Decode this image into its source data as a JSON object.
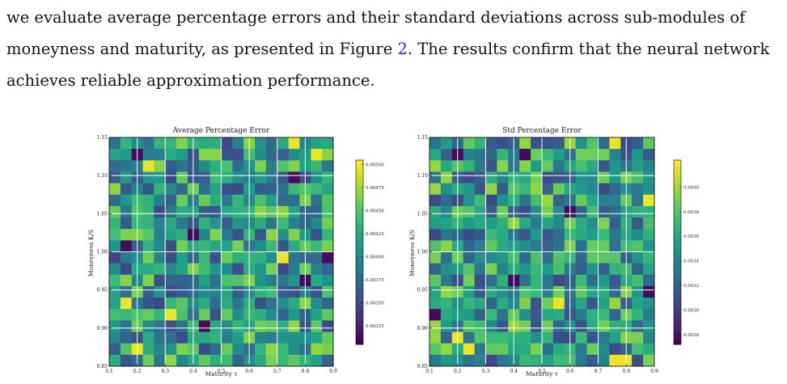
{
  "paragraph": {
    "line1": "we evaluate average percentage errors and their standard deviations across sub-modules of",
    "line2_before": "moneyness and maturity, as presented in Figure ",
    "line2_ref": "2",
    "line2_after": ". The results confirm that the neural network",
    "line3": "achieves reliable approximation performance."
  },
  "colormap": "viridis_r",
  "chart_data": [
    {
      "type": "heatmap",
      "title": "Average Percentage Error",
      "xlabel": "Maturity τ",
      "ylabel": "Moneyness K/S",
      "xlim": [
        0.1,
        0.9
      ],
      "ylim": [
        0.85,
        1.15
      ],
      "x_ticks": [
        "0.1",
        "0.2",
        "0.3",
        "0.4",
        "0.5",
        "0.6",
        "0.7",
        "0.8",
        "0.9"
      ],
      "y_ticks": [
        "0.85",
        "0.90",
        "0.95",
        "1.00",
        "1.05",
        "1.10",
        "1.15"
      ],
      "grid": true,
      "colorbar": {
        "min": 0.00305,
        "max": 0.00505,
        "ticks": [
          "0.00325",
          "0.00350",
          "0.00375",
          "0.00400",
          "0.00425",
          "0.00450",
          "0.00475",
          "0.00500"
        ]
      },
      "rows": 20,
      "cols": 20,
      "seed": 71,
      "hot": [
        [
          0,
          16
        ],
        [
          2,
          3
        ],
        [
          1,
          18
        ],
        [
          10,
          15
        ],
        [
          18,
          2
        ],
        [
          14,
          1
        ],
        [
          15,
          5
        ]
      ],
      "cold": [
        [
          1,
          2
        ],
        [
          8,
          7
        ],
        [
          9,
          1
        ],
        [
          3,
          16
        ],
        [
          12,
          17
        ],
        [
          10,
          19
        ],
        [
          16,
          8
        ]
      ]
    },
    {
      "type": "heatmap",
      "title": "Std Percentage Error",
      "xlabel": "Maturity τ",
      "ylabel": "Moneyness K/S",
      "xlim": [
        0.1,
        0.9
      ],
      "ylim": [
        0.85,
        1.15
      ],
      "x_ticks": [
        "0.1",
        "0.2",
        "0.3",
        "0.4",
        "0.5",
        "0.6",
        "0.7",
        "0.8",
        "0.9"
      ],
      "y_ticks": [
        "0.85",
        "0.90",
        "0.95",
        "1.00",
        "1.05",
        "1.10",
        "1.15"
      ],
      "grid": true,
      "colorbar": {
        "min": 0.00272,
        "max": 0.00422,
        "ticks": [
          "0.0028",
          "0.0030",
          "0.0032",
          "0.0034",
          "0.0036",
          "0.0038",
          "0.0040"
        ]
      },
      "rows": 20,
      "cols": 20,
      "seed": 113,
      "hot": [
        [
          0,
          16
        ],
        [
          5,
          19
        ],
        [
          17,
          2
        ],
        [
          18,
          3
        ],
        [
          19,
          16
        ],
        [
          19,
          17
        ],
        [
          14,
          11
        ]
      ],
      "cold": [
        [
          1,
          2
        ],
        [
          1,
          8
        ],
        [
          13,
          19
        ],
        [
          12,
          7
        ],
        [
          6,
          12
        ],
        [
          15,
          0
        ]
      ]
    }
  ]
}
